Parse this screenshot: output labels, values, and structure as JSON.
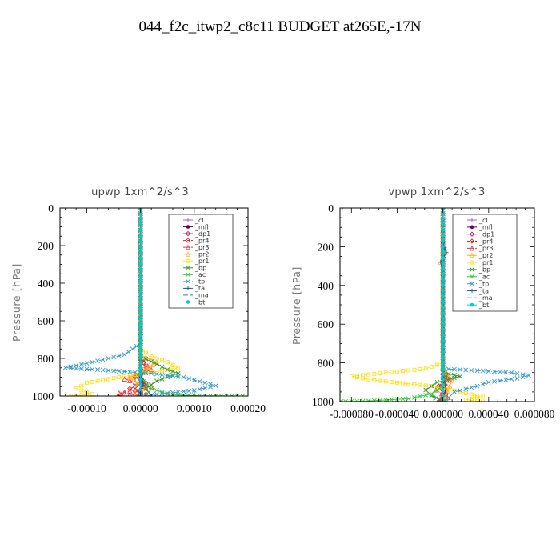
{
  "figure_title": "044_f2c_itwp2_c8c11  BUDGET at265E,-17N",
  "legend_entries": [
    "_cl",
    "_mfl",
    "_dp1",
    "_pr4",
    "_pr3",
    "_pr2",
    "_pr1",
    "_bp",
    "_ac",
    "_tp",
    "_ta",
    "_ma",
    "_bt"
  ],
  "series_colors": {
    "_cl": "#9966cc",
    "_mfl": "#660066",
    "_dp1": "#aa1155",
    "_pr4": "#cc2222",
    "_pr3": "#ee3333",
    "_pr2": "#ffaa22",
    "_pr1": "#ffdd00",
    "_bp": "#339933",
    "_ac": "#33cc33",
    "_tp": "#3399cc",
    "_ta": "#2255aa",
    "_ma": "#1188aa",
    "_bt": "#00cccc"
  },
  "chart_data": [
    {
      "type": "line",
      "title": "upwp   1xm^2/s^3",
      "ylabel": "Pressure [hPa]",
      "xlabel": "",
      "xlim": [
        -0.00015,
        0.0002
      ],
      "ylim": [
        1000,
        0
      ],
      "xticks": [
        "-0.00010",
        "0.00000",
        "0.00010",
        "0.00020"
      ],
      "xtick_values": [
        -0.0001,
        0.0,
        0.0001,
        0.0002
      ],
      "yticks": [
        "0",
        "200",
        "400",
        "600",
        "800",
        "1000"
      ],
      "ytick_values": [
        0,
        200,
        400,
        600,
        800,
        1000
      ],
      "legend_position": "top-right",
      "series": [
        {
          "name": "_cl",
          "marker": "plus",
          "dash": "",
          "points": [
            [
              0,
              0
            ],
            [
              0,
              500
            ],
            [
              0,
              1000
            ]
          ]
        },
        {
          "name": "_mfl",
          "marker": "circle",
          "dash": "",
          "points": [
            [
              0,
              0
            ],
            [
              0,
              500
            ],
            [
              0,
              900
            ],
            [
              0,
              1000
            ]
          ]
        },
        {
          "name": "_dp1",
          "marker": "diamond",
          "dash": "",
          "points": [
            [
              0,
              0
            ],
            [
              0,
              500
            ],
            [
              0,
              850
            ],
            [
              5e-06,
              950
            ],
            [
              -5e-06,
              1000
            ]
          ]
        },
        {
          "name": "_pr4",
          "marker": "diamond",
          "dash": "3,2",
          "points": [
            [
              0,
              0
            ],
            [
              0,
              780
            ],
            [
              1e-05,
              850
            ],
            [
              -1e-05,
              900
            ],
            [
              1e-05,
              930
            ],
            [
              -2e-05,
              960
            ],
            [
              1e-05,
              990
            ],
            [
              -1e-05,
              1000
            ]
          ]
        },
        {
          "name": "_pr3",
          "marker": "triangle",
          "dash": "3,2",
          "points": [
            [
              0,
              0
            ],
            [
              0,
              800
            ],
            [
              2e-05,
              860
            ],
            [
              -3e-05,
              910
            ],
            [
              2e-05,
              950
            ],
            [
              -4e-05,
              985
            ],
            [
              1e-05,
              1000
            ]
          ]
        },
        {
          "name": "_pr2",
          "marker": "triangle",
          "dash": "",
          "points": [
            [
              0,
              0
            ],
            [
              0,
              780
            ],
            [
              3e-05,
              820
            ],
            [
              8e-06,
              860
            ],
            [
              -2e-05,
              900
            ],
            [
              1e-05,
              960
            ],
            [
              -1e-05,
              1000
            ]
          ]
        },
        {
          "name": "_pr1",
          "marker": "square",
          "dash": "3,2",
          "points": [
            [
              0,
              0
            ],
            [
              0,
              750
            ],
            [
              2e-05,
              790
            ],
            [
              5e-05,
              820
            ],
            [
              7e-05,
              850
            ],
            [
              3e-05,
              870
            ],
            [
              -2e-05,
              890
            ],
            [
              -6e-05,
              910
            ],
            [
              -0.0001,
              930
            ],
            [
              -0.00012,
              960
            ],
            [
              -9e-05,
              990
            ],
            [
              -0.00013,
              1000
            ]
          ]
        },
        {
          "name": "_bp",
          "marker": "x",
          "dash": "",
          "points": [
            [
              0,
              0
            ],
            [
              0,
              790
            ],
            [
              3e-05,
              830
            ],
            [
              5e-05,
              860
            ],
            [
              7e-05,
              880
            ],
            [
              3e-05,
              920
            ],
            [
              1e-05,
              960
            ],
            [
              2e-05,
              1000
            ]
          ]
        },
        {
          "name": "_ac",
          "marker": "x",
          "dash": "",
          "points": [
            [
              0,
              0
            ],
            [
              0,
              900
            ],
            [
              2e-05,
              960
            ],
            [
              5e-05,
              990
            ],
            [
              8e-05,
              996
            ],
            [
              0.00012,
              999
            ],
            [
              0.00019,
              1000
            ]
          ]
        },
        {
          "name": "_tp",
          "marker": "x",
          "dash": "6,2,1,2",
          "points": [
            [
              0,
              0
            ],
            [
              0,
              720
            ],
            [
              -3e-05,
              780
            ],
            [
              -9e-05,
              820
            ],
            [
              -0.00014,
              850
            ],
            [
              -8e-05,
              860
            ],
            [
              2e-05,
              880
            ],
            [
              8e-05,
              900
            ],
            [
              0.00014,
              945
            ],
            [
              0.0001,
              970
            ],
            [
              3e-05,
              990
            ],
            [
              1e-05,
              1000
            ]
          ]
        },
        {
          "name": "_ta",
          "marker": "plus",
          "dash": "",
          "points": [
            [
              0,
              0
            ],
            [
              0,
              880
            ],
            [
              5e-06,
              940
            ],
            [
              -5e-06,
              1000
            ]
          ]
        },
        {
          "name": "_ma",
          "marker": "none",
          "dash": "6,3",
          "points": [
            [
              0,
              0
            ],
            [
              0,
              1000
            ]
          ]
        },
        {
          "name": "_bt",
          "marker": "circle",
          "dash": "",
          "points": [
            [
              0,
              0
            ],
            [
              0,
              1000
            ]
          ]
        }
      ]
    },
    {
      "type": "line",
      "title": "vpwp   1xm^2/s^3",
      "ylabel": "Pressure [hPa]",
      "xlabel": "",
      "xlim": [
        -9e-05,
        8e-05
      ],
      "ylim": [
        1000,
        0
      ],
      "xticks": [
        "-0.000080",
        "-0.000040",
        "0.000000",
        "0.000040",
        "0.000080"
      ],
      "xtick_values": [
        -8e-05,
        -4e-05,
        0.0,
        4e-05,
        8e-05
      ],
      "yticks": [
        "0",
        "200",
        "400",
        "600",
        "800",
        "1000"
      ],
      "ytick_values": [
        0,
        200,
        400,
        600,
        800,
        1000
      ],
      "legend_position": "top-right",
      "series": [
        {
          "name": "_cl",
          "marker": "plus",
          "dash": "",
          "points": [
            [
              0,
              0
            ],
            [
              0,
              500
            ],
            [
              0,
              1000
            ]
          ]
        },
        {
          "name": "_mfl",
          "marker": "circle",
          "dash": "",
          "points": [
            [
              0,
              0
            ],
            [
              0,
              500
            ],
            [
              0,
              900
            ],
            [
              0,
              1000
            ]
          ]
        },
        {
          "name": "_dp1",
          "marker": "diamond",
          "dash": "",
          "points": [
            [
              0,
              0
            ],
            [
              0,
              860
            ],
            [
              3e-06,
              940
            ],
            [
              -3e-06,
              1000
            ]
          ]
        },
        {
          "name": "_pr4",
          "marker": "diamond",
          "dash": "3,2",
          "points": [
            [
              0,
              0
            ],
            [
              0,
              840
            ],
            [
              4e-06,
              880
            ],
            [
              -4e-06,
              920
            ],
            [
              3e-06,
              960
            ],
            [
              -4e-06,
              1000
            ]
          ]
        },
        {
          "name": "_pr3",
          "marker": "triangle",
          "dash": "3,2",
          "points": [
            [
              0,
              0
            ],
            [
              0,
              850
            ],
            [
              6e-06,
              890
            ],
            [
              -6e-06,
              940
            ],
            [
              4e-06,
              980
            ],
            [
              -3e-06,
              1000
            ]
          ]
        },
        {
          "name": "_pr2",
          "marker": "triangle",
          "dash": "",
          "points": [
            [
              0,
              0
            ],
            [
              0,
              180
            ],
            [
              2e-06,
              230
            ],
            [
              -2e-06,
              280
            ],
            [
              0,
              320
            ],
            [
              0,
              830
            ],
            [
              8e-06,
              890
            ],
            [
              4e-06,
              950
            ],
            [
              0,
              1000
            ]
          ]
        },
        {
          "name": "_pr1",
          "marker": "square",
          "dash": "3,2",
          "points": [
            [
              0,
              0
            ],
            [
              0,
              800
            ],
            [
              -1.5e-05,
              830
            ],
            [
              -5e-05,
              850
            ],
            [
              -8e-05,
              870
            ],
            [
              -6e-05,
              890
            ],
            [
              -1e-05,
              920
            ],
            [
              1.5e-05,
              950
            ],
            [
              3.5e-05,
              975
            ],
            [
              2e-05,
              990
            ],
            [
              3.5e-05,
              1000
            ]
          ]
        },
        {
          "name": "_bp",
          "marker": "x",
          "dash": "",
          "points": [
            [
              0,
              0
            ],
            [
              0,
              850
            ],
            [
              1.5e-05,
              870
            ],
            [
              -5e-06,
              900
            ],
            [
              -1.5e-05,
              940
            ],
            [
              -1e-05,
              970
            ],
            [
              3e-06,
              1000
            ]
          ]
        },
        {
          "name": "_ac",
          "marker": "x",
          "dash": "",
          "points": [
            [
              0,
              0
            ],
            [
              0,
              920
            ],
            [
              -1e-05,
              960
            ],
            [
              -3e-05,
              985
            ],
            [
              -7e-05,
              998
            ],
            [
              -9e-05,
              1000
            ]
          ]
        },
        {
          "name": "_tp",
          "marker": "x",
          "dash": "6,2,1,2",
          "points": [
            [
              0,
              0
            ],
            [
              0,
              830
            ],
            [
              3e-05,
              840
            ],
            [
              6e-05,
              850
            ],
            [
              7.5e-05,
              865
            ],
            [
              6.5e-05,
              880
            ],
            [
              4e-05,
              900
            ],
            [
              3e-05,
              920
            ],
            [
              1e-05,
              950
            ],
            [
              5e-06,
              980
            ],
            [
              0,
              1000
            ]
          ]
        },
        {
          "name": "_ta",
          "marker": "plus",
          "dash": "",
          "points": [
            [
              0,
              0
            ],
            [
              0,
              180
            ],
            [
              3e-06,
              230
            ],
            [
              -2e-06,
              280
            ],
            [
              0,
              320
            ],
            [
              0,
              1000
            ]
          ]
        },
        {
          "name": "_ma",
          "marker": "none",
          "dash": "6,3",
          "points": [
            [
              0,
              0
            ],
            [
              0,
              1000
            ]
          ]
        },
        {
          "name": "_bt",
          "marker": "circle",
          "dash": "",
          "points": [
            [
              0,
              0
            ],
            [
              0,
              1000
            ]
          ]
        }
      ]
    }
  ]
}
